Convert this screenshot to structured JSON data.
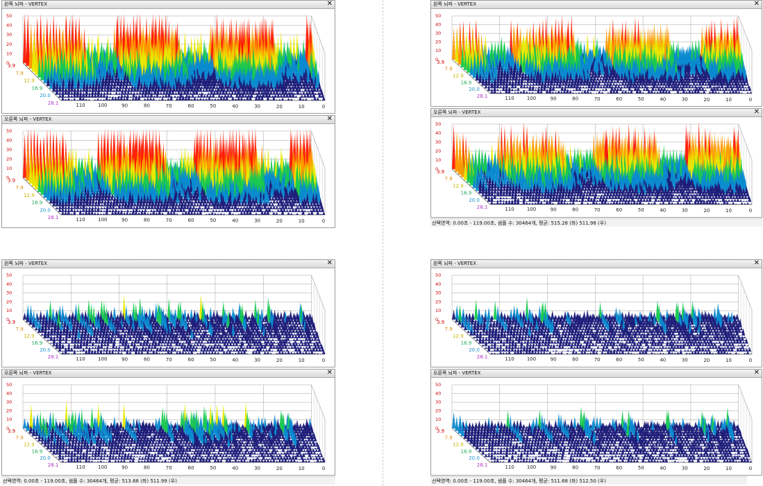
{
  "panels": {
    "left_title": "왼쪽 뇌파 - VERTEX",
    "right_title": "오른쪽 뇌파 - VERTEX",
    "close_symbol": "✕"
  },
  "axes": {
    "y_ticks": [
      "50",
      "40",
      "30",
      "20",
      "10",
      "0"
    ],
    "x_ticks": [
      "110",
      "100",
      "90",
      "80",
      "70",
      "60",
      "50",
      "40",
      "30",
      "20",
      "10",
      "0"
    ],
    "depth_labels": [
      "3.9",
      "7.9",
      "12.9",
      "16.9",
      "20.0",
      "28.1"
    ]
  },
  "colors": {
    "high": "#ff1a00",
    "mid_high": "#ff9900",
    "mid": "#e8e800",
    "mid_low": "#18c850",
    "low": "#0a8ad0",
    "floor": "#1a1a78"
  },
  "status": {
    "q2": "선택영역: 0.00초 - 119.00초, 샘플 수: 30464개, 평균: 515.28 (좌) 511.98 (우)",
    "q3": "선택영역: 0.00초 - 119.00초, 샘플 수: 30464개, 평균: 513.68 (좌) 511.99 (우)",
    "q4": "선택영역: 0.00초 - 119.00초, 샘플 수: 30464개, 평균: 511.68 (좌) 512.50 (우)"
  },
  "chart_data": [
    {
      "type": "area",
      "panel": "q1-left",
      "x_ticks": [
        110,
        100,
        90,
        80,
        70,
        60,
        50,
        40,
        30,
        20,
        10,
        0
      ],
      "y_range": [
        0,
        50
      ],
      "intensity": 0.95
    },
    {
      "type": "area",
      "panel": "q1-right",
      "x_ticks": [
        110,
        100,
        90,
        80,
        70,
        60,
        50,
        40,
        30,
        20,
        10,
        0
      ],
      "y_range": [
        0,
        50
      ],
      "intensity": 1.0
    },
    {
      "type": "area",
      "panel": "q2-left",
      "x_ticks": [
        110,
        100,
        90,
        80,
        70,
        60,
        50,
        40,
        30,
        20,
        10,
        0
      ],
      "y_range": [
        0,
        50
      ],
      "intensity": 0.8
    },
    {
      "type": "area",
      "panel": "q2-right",
      "x_ticks": [
        110,
        100,
        90,
        80,
        70,
        60,
        50,
        40,
        30,
        20,
        10,
        0
      ],
      "y_range": [
        0,
        50
      ],
      "intensity": 0.85
    },
    {
      "type": "area",
      "panel": "q3-left",
      "x_ticks": [
        110,
        100,
        90,
        80,
        70,
        60,
        50,
        40,
        30,
        20,
        10,
        0
      ],
      "y_range": [
        0,
        50
      ],
      "intensity": 0.4
    },
    {
      "type": "area",
      "panel": "q3-right",
      "x_ticks": [
        110,
        100,
        90,
        80,
        70,
        60,
        50,
        40,
        30,
        20,
        10,
        0
      ],
      "y_range": [
        0,
        50
      ],
      "intensity": 0.45
    },
    {
      "type": "area",
      "panel": "q4-left",
      "x_ticks": [
        110,
        100,
        90,
        80,
        70,
        60,
        50,
        40,
        30,
        20,
        10,
        0
      ],
      "y_range": [
        0,
        50
      ],
      "intensity": 0.35
    },
    {
      "type": "area",
      "panel": "q4-right",
      "x_ticks": [
        110,
        100,
        90,
        80,
        70,
        60,
        50,
        40,
        30,
        20,
        10,
        0
      ],
      "y_range": [
        0,
        50
      ],
      "intensity": 0.38
    }
  ]
}
